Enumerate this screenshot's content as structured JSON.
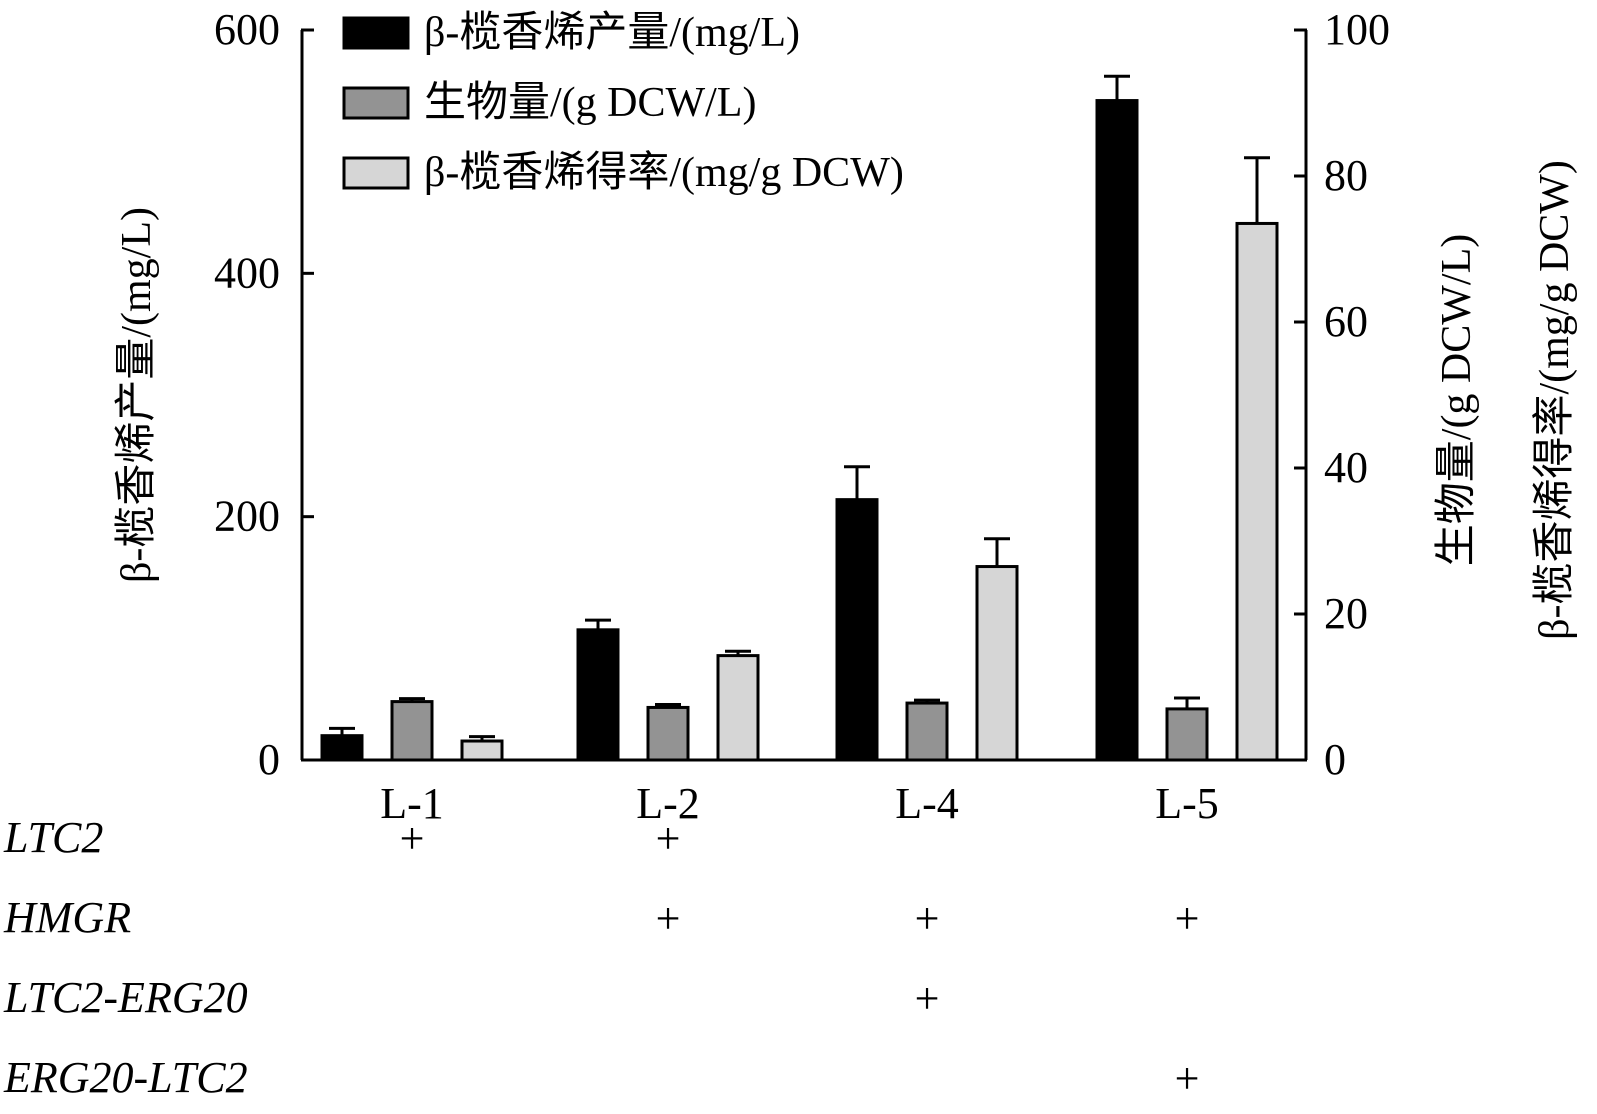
{
  "chart_data": {
    "type": "bar",
    "categories": [
      "L-1",
      "L-2",
      "L-4",
      "L-5"
    ],
    "series": [
      {
        "name": "β-榄香烯产量/(mg/L)",
        "axis": "left",
        "color": "#000000",
        "values": [
          20,
          107,
          214,
          542
        ],
        "errors": [
          6,
          8,
          27,
          20
        ]
      },
      {
        "name": "生物量/(g DCW/L)",
        "axis": "right",
        "color": "#939393",
        "values": [
          8.0,
          7.2,
          7.8,
          7.0
        ],
        "errors": [
          0.4,
          0.4,
          0.4,
          1.5
        ]
      },
      {
        "name": "β-榄香烯得率/(mg/g DCW)",
        "axis": "right",
        "color": "#d6d6d6",
        "values": [
          2.6,
          14.3,
          26.5,
          73.5
        ],
        "errors": [
          0.6,
          0.6,
          3.8,
          9.0
        ]
      }
    ],
    "left_axis": {
      "label": "β-榄香烯产量/(mg/L)",
      "ylim": [
        0,
        600
      ],
      "ticks": [
        "0",
        "200",
        "400",
        "600"
      ]
    },
    "right_axis": {
      "labels": [
        "生物量/(g DCW/L)",
        "β-榄香烯得率/(mg/g DCW)"
      ],
      "ylim": [
        0,
        100
      ],
      "ticks": [
        "0",
        "20",
        "40",
        "60",
        "80",
        "100"
      ]
    },
    "legend": {
      "placement": "top-left",
      "entries": [
        {
          "label": "β-榄香烯产量/(mg/L)",
          "color": "#000000"
        },
        {
          "label": "生物量/(g DCW/L)",
          "color": "#939393"
        },
        {
          "label": "β-榄香烯得率/(mg/g DCW)",
          "color": "#d6d6d6"
        }
      ]
    },
    "grid": false,
    "table": {
      "rows": [
        {
          "gene": "LTC2",
          "marks": [
            "+",
            "+",
            "",
            ""
          ]
        },
        {
          "gene": "HMGR",
          "marks": [
            "",
            "+",
            "+",
            "+"
          ]
        },
        {
          "gene": "LTC2-ERG20",
          "marks": [
            "",
            "",
            "+",
            ""
          ]
        },
        {
          "gene": "ERG20-LTC2",
          "marks": [
            "",
            "",
            "",
            "+"
          ]
        }
      ]
    }
  }
}
